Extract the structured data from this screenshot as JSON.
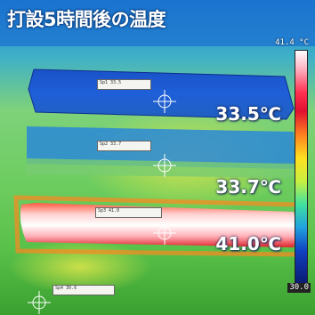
{
  "image": {
    "title": "打設5時間後の温度",
    "readings": [
      "33.5℃",
      "33.7℃",
      "41.0℃"
    ],
    "scale": {
      "max": "41.4 °C",
      "min": "30.0"
    },
    "spot_labels": [
      "Sp1 33.5",
      "Sp2 33.7",
      "Sp3 41.0",
      "Sp4 30.6"
    ]
  }
}
